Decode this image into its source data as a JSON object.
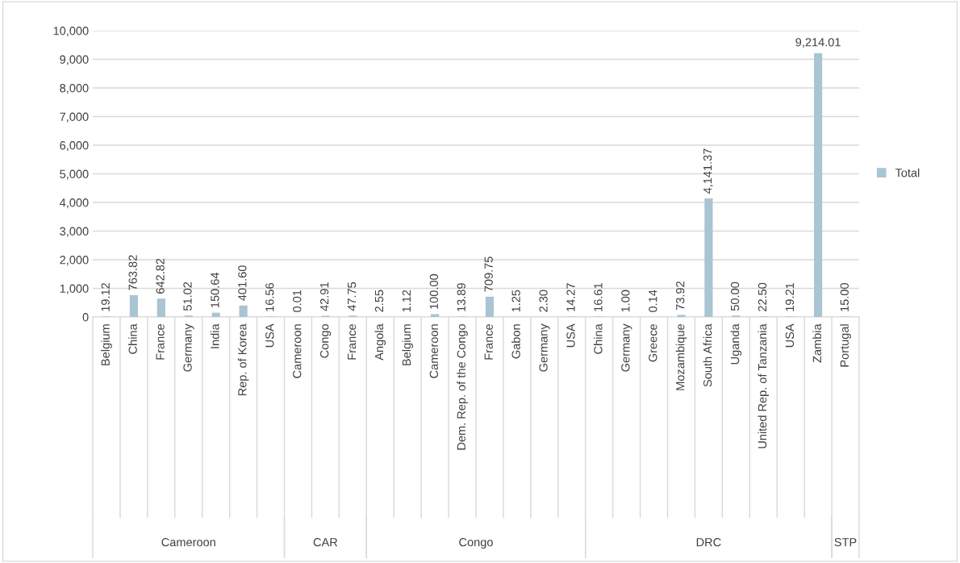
{
  "chart_data": {
    "type": "bar",
    "categories": [
      "Belgium",
      "China",
      "France",
      "Germany",
      "India",
      "Rep. of Korea",
      "USA",
      "Cameroon",
      "Congo",
      "France",
      "Angola",
      "Belgium",
      "Cameroon",
      "Dem. Rep. of the Congo",
      "France",
      "Gabon",
      "Germany",
      "USA",
      "China",
      "Germany",
      "Greece",
      "Mozambique",
      "South Africa",
      "Uganda",
      "United Rep. of Tanzania",
      "USA",
      "Zambia",
      "Portugal"
    ],
    "series": [
      {
        "name": "Total",
        "color": "#a9c4d2",
        "values": [
          19.12,
          763.82,
          642.82,
          51.02,
          150.64,
          401.6,
          16.56,
          0.01,
          42.91,
          47.75,
          2.55,
          1.12,
          100.0,
          13.89,
          709.75,
          1.25,
          2.3,
          14.27,
          16.61,
          1.0,
          0.14,
          73.92,
          4141.37,
          50.0,
          22.5,
          19.21,
          9214.01,
          15.0
        ],
        "value_labels": [
          "19.12",
          "763.82",
          "642.82",
          "51.02",
          "150.64",
          "401.60",
          "16.56",
          "0.01",
          "42.91",
          "47.75",
          "2.55",
          "1.12",
          "100.00",
          "13.89",
          "709.75",
          "1.25",
          "2.30",
          "14.27",
          "16.61",
          "1.00",
          "0.14",
          "73.92",
          "4,141.37",
          "50.00",
          "22.50",
          "19.21",
          "9,214.01",
          "15.00"
        ]
      }
    ],
    "annotations": [
      "Cameroon",
      "CAR",
      "Congo",
      "DRC",
      "STP"
    ],
    "ylim": [
      0,
      10000
    ],
    "yticks": [
      {
        "value": 0,
        "label": "0"
      },
      {
        "value": 1000,
        "label": "1,000"
      },
      {
        "value": 2000,
        "label": "2,000"
      },
      {
        "value": 3000,
        "label": "3,000"
      },
      {
        "value": 4000,
        "label": "4,000"
      },
      {
        "value": 5000,
        "label": "5,000"
      },
      {
        "value": 6000,
        "label": "6,000"
      },
      {
        "value": 7000,
        "label": "7,000"
      },
      {
        "value": 8000,
        "label": "8,000"
      },
      {
        "value": 9000,
        "label": "9,000"
      },
      {
        "value": 10000,
        "label": "10,000"
      }
    ],
    "grid": "y",
    "legend": "right"
  }
}
